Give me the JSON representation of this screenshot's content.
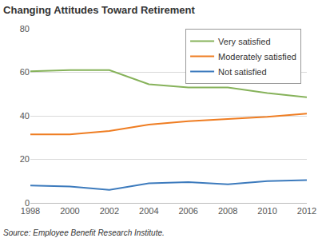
{
  "chart_data": {
    "type": "line",
    "title": "Changing Attitudes Toward Retirement",
    "annotations": [
      "Source: Employee Benefit Research Institute."
    ],
    "categories": [
      "1998",
      "2000",
      "2002",
      "2004",
      "2006",
      "2008",
      "2010",
      "2012"
    ],
    "series": [
      {
        "name": "Very satisfied",
        "color": "#86b25a",
        "values": [
          60.5,
          61,
          61,
          54.5,
          53,
          53,
          50.5,
          48.5
        ]
      },
      {
        "name": "Moderately satisfied",
        "color": "#ef7d22",
        "values": [
          31.5,
          31.5,
          33,
          36,
          37.5,
          38.5,
          39.5,
          41
        ]
      },
      {
        "name": "Not satisfied",
        "color": "#3d7bbd",
        "values": [
          8,
          7.5,
          6,
          9,
          9.5,
          8.5,
          10,
          10.5
        ]
      }
    ],
    "ylim": [
      0,
      80
    ],
    "yticks": [
      0,
      20,
      40,
      60,
      80
    ],
    "grid": true,
    "legend": "top-right"
  }
}
